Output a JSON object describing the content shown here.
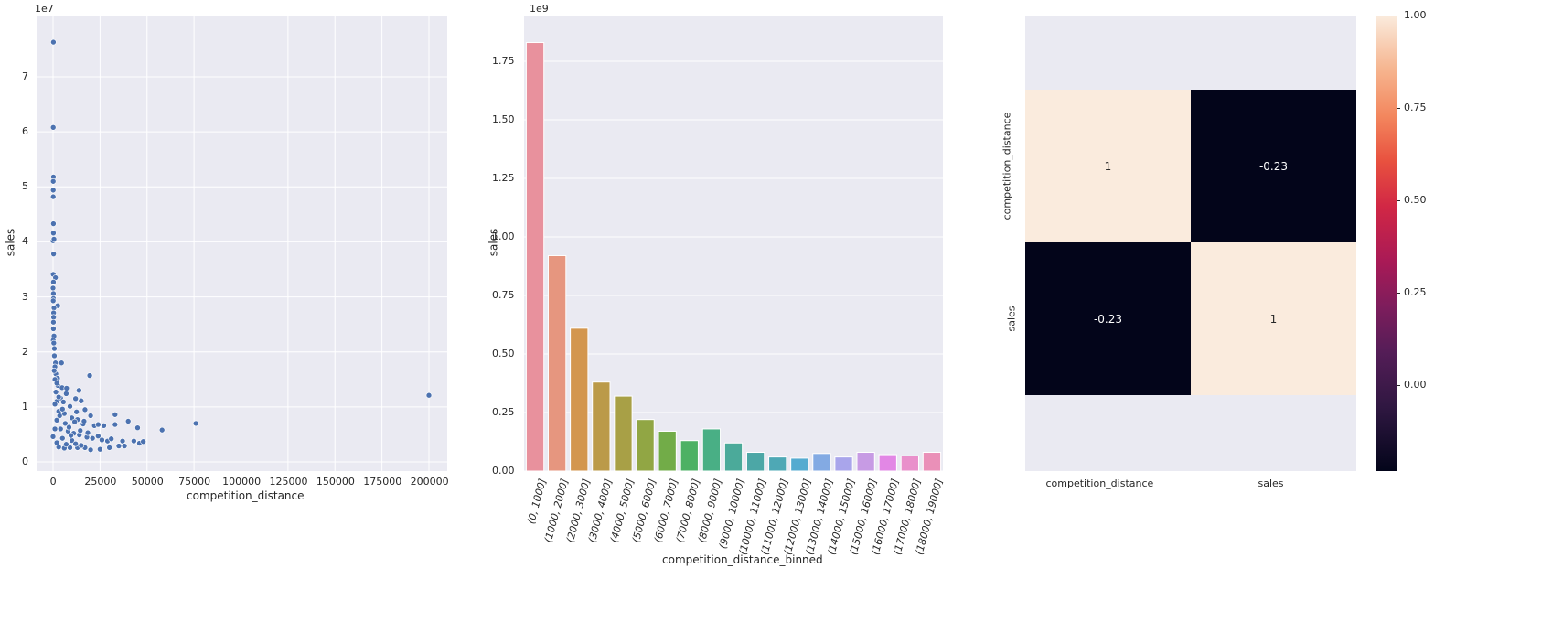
{
  "chart_data": [
    {
      "type": "scatter",
      "title": "",
      "xlabel": "competition_distance",
      "ylabel": "sales",
      "y_offset_label": "1e7",
      "xlim": [
        -10000,
        210000
      ],
      "ylim": [
        -2000000,
        79000000
      ],
      "x_ticks": [
        "0",
        "25000",
        "50000",
        "75000",
        "100000",
        "125000",
        "150000",
        "175000",
        "200000"
      ],
      "x_tick_values": [
        0,
        25000,
        50000,
        75000,
        100000,
        125000,
        150000,
        175000,
        200000
      ],
      "y_ticks": [
        "0",
        "1",
        "2",
        "3",
        "4",
        "5",
        "6",
        "7"
      ],
      "y_tick_values": [
        0,
        10000000,
        20000000,
        30000000,
        40000000,
        50000000,
        60000000,
        70000000
      ],
      "grid": true,
      "marker_color": "#4c72b0",
      "points": [
        [
          200,
          76300000
        ],
        [
          100,
          60800000
        ],
        [
          200,
          51800000
        ],
        [
          100,
          51000000
        ],
        [
          100,
          49400000
        ],
        [
          100,
          48200000
        ],
        [
          200,
          43300000
        ],
        [
          200,
          41600000
        ],
        [
          0,
          40200000
        ],
        [
          500,
          40500000
        ],
        [
          300,
          37800000
        ],
        [
          100,
          34100000
        ],
        [
          1300,
          33500000
        ],
        [
          200,
          32700000
        ],
        [
          0,
          31600000
        ],
        [
          200,
          30600000
        ],
        [
          200,
          29700000
        ],
        [
          100,
          29300000
        ],
        [
          2500,
          28400000
        ],
        [
          500,
          28000000
        ],
        [
          300,
          27100000
        ],
        [
          300,
          26300000
        ],
        [
          200,
          25400000
        ],
        [
          200,
          24200000
        ],
        [
          500,
          22900000
        ],
        [
          100,
          22100000
        ],
        [
          400,
          21600000
        ],
        [
          700,
          20600000
        ],
        [
          700,
          19300000
        ],
        [
          1300,
          18000000
        ],
        [
          4500,
          18000000
        ],
        [
          1000,
          17300000
        ],
        [
          1500,
          16000000
        ],
        [
          2400,
          15200000
        ],
        [
          19500,
          15700000
        ],
        [
          1000,
          15000000
        ],
        [
          2500,
          13900000
        ],
        [
          4800,
          13500000
        ],
        [
          7200,
          13400000
        ],
        [
          13800,
          13000000
        ],
        [
          7000,
          12400000
        ],
        [
          4000,
          11600000
        ],
        [
          2000,
          11000000
        ],
        [
          5500,
          10900000
        ],
        [
          15000,
          11100000
        ],
        [
          12000,
          11500000
        ],
        [
          9000,
          10100000
        ],
        [
          17000,
          9500000
        ],
        [
          20000,
          8400000
        ],
        [
          33000,
          8600000
        ],
        [
          3000,
          9200000
        ],
        [
          6000,
          8800000
        ],
        [
          10000,
          8000000
        ],
        [
          13000,
          7700000
        ],
        [
          16000,
          6900000
        ],
        [
          22000,
          6600000
        ],
        [
          24000,
          6800000
        ],
        [
          27000,
          6600000
        ],
        [
          33000,
          6800000
        ],
        [
          40000,
          7400000
        ],
        [
          45000,
          6200000
        ],
        [
          58000,
          5800000
        ],
        [
          76000,
          7000000
        ],
        [
          200000,
          12100000
        ],
        [
          4000,
          6000000
        ],
        [
          8000,
          5600000
        ],
        [
          11000,
          5200000
        ],
        [
          14000,
          4900000
        ],
        [
          18000,
          4500000
        ],
        [
          21000,
          4300000
        ],
        [
          24000,
          4700000
        ],
        [
          26000,
          4000000
        ],
        [
          29000,
          3800000
        ],
        [
          31000,
          4200000
        ],
        [
          37000,
          3800000
        ],
        [
          43000,
          3800000
        ],
        [
          46000,
          3400000
        ],
        [
          48000,
          3700000
        ],
        [
          35000,
          2900000
        ],
        [
          38000,
          2900000
        ],
        [
          30000,
          2600000
        ],
        [
          25000,
          2300000
        ],
        [
          20000,
          2200000
        ],
        [
          17000,
          2600000
        ],
        [
          13000,
          2600000
        ],
        [
          9000,
          2600000
        ],
        [
          6000,
          2500000
        ],
        [
          3000,
          2700000
        ],
        [
          2000,
          3500000
        ],
        [
          5000,
          4300000
        ],
        [
          7000,
          3200000
        ],
        [
          10000,
          3900000
        ],
        [
          12000,
          3300000
        ],
        [
          15000,
          3000000
        ],
        [
          1000,
          6000000
        ],
        [
          2000,
          7600000
        ],
        [
          3500,
          8400000
        ],
        [
          5000,
          9600000
        ],
        [
          6500,
          7000000
        ],
        [
          8500,
          6300000
        ],
        [
          9500,
          4800000
        ],
        [
          11500,
          7300000
        ],
        [
          12500,
          9100000
        ],
        [
          14500,
          5700000
        ],
        [
          16500,
          7400000
        ],
        [
          18500,
          5300000
        ],
        [
          0,
          4600000
        ],
        [
          1000,
          10500000
        ],
        [
          1500,
          12700000
        ],
        [
          2000,
          14300000
        ],
        [
          3000,
          11800000
        ],
        [
          600,
          16600000
        ]
      ]
    },
    {
      "type": "bar",
      "title": "",
      "xlabel": "competition_distance_binned",
      "ylabel": "sales",
      "y_offset_label": "1e9",
      "ylim": [
        0,
        1.91
      ],
      "y_ticks": [
        "0.00",
        "0.25",
        "0.50",
        "0.75",
        "1.00",
        "1.25",
        "1.50",
        "1.75"
      ],
      "y_tick_values": [
        0,
        0.25,
        0.5,
        0.75,
        1.0,
        1.25,
        1.5,
        1.75
      ],
      "grid": true,
      "categories": [
        "(0, 1000]",
        "(1000, 2000]",
        "(2000, 3000]",
        "(3000, 4000]",
        "(4000, 5000]",
        "(5000, 6000]",
        "(6000, 7000]",
        "(7000, 8000]",
        "(8000, 9000]",
        "(9000, 10000]",
        "(10000, 11000]",
        "(11000, 12000]",
        "(12000, 13000]",
        "(13000, 14000]",
        "(14000, 15000]",
        "(15000, 16000]",
        "(16000, 17000]",
        "(17000, 18000]",
        "(18000, 19000]"
      ],
      "values": [
        1.83,
        0.92,
        0.61,
        0.38,
        0.32,
        0.22,
        0.17,
        0.13,
        0.18,
        0.12,
        0.08,
        0.06,
        0.055,
        0.075,
        0.06,
        0.08,
        0.07,
        0.065,
        0.08
      ],
      "colors": [
        "#e8919d",
        "#e6967f",
        "#d3964e",
        "#bb9a49",
        "#a8a046",
        "#91a644",
        "#72ac48",
        "#4db164",
        "#49af85",
        "#4baa9a",
        "#4ca7a6",
        "#4ea8b5",
        "#55abd0",
        "#83aae3",
        "#a9a5eb",
        "#c79be4",
        "#e287e5",
        "#e990cb",
        "#ea90b8"
      ]
    },
    {
      "type": "heatmap",
      "title": "",
      "x_labels": [
        "competition_distance",
        "sales"
      ],
      "y_labels": [
        "competition_distance",
        "sales"
      ],
      "matrix": [
        [
          1,
          -0.23
        ],
        [
          -0.23,
          1
        ]
      ],
      "annotations": [
        [
          "1",
          "-0.23"
        ],
        [
          "-0.23",
          "1"
        ]
      ],
      "colormap": "rocket",
      "colorbar_range": [
        -0.23,
        1.0
      ],
      "colorbar_ticks": [
        "1.00",
        "0.75",
        "0.50",
        "0.25",
        "0.00"
      ],
      "colorbar_tick_values": [
        1.0,
        0.75,
        0.5,
        0.25,
        0.0
      ]
    }
  ],
  "colors": {
    "axes_bg": "#eaeaf2",
    "grid": "#ffffff",
    "scatter_marker": "#4c72b0",
    "heat_high": "#faebdd",
    "heat_low": "#03051a"
  }
}
